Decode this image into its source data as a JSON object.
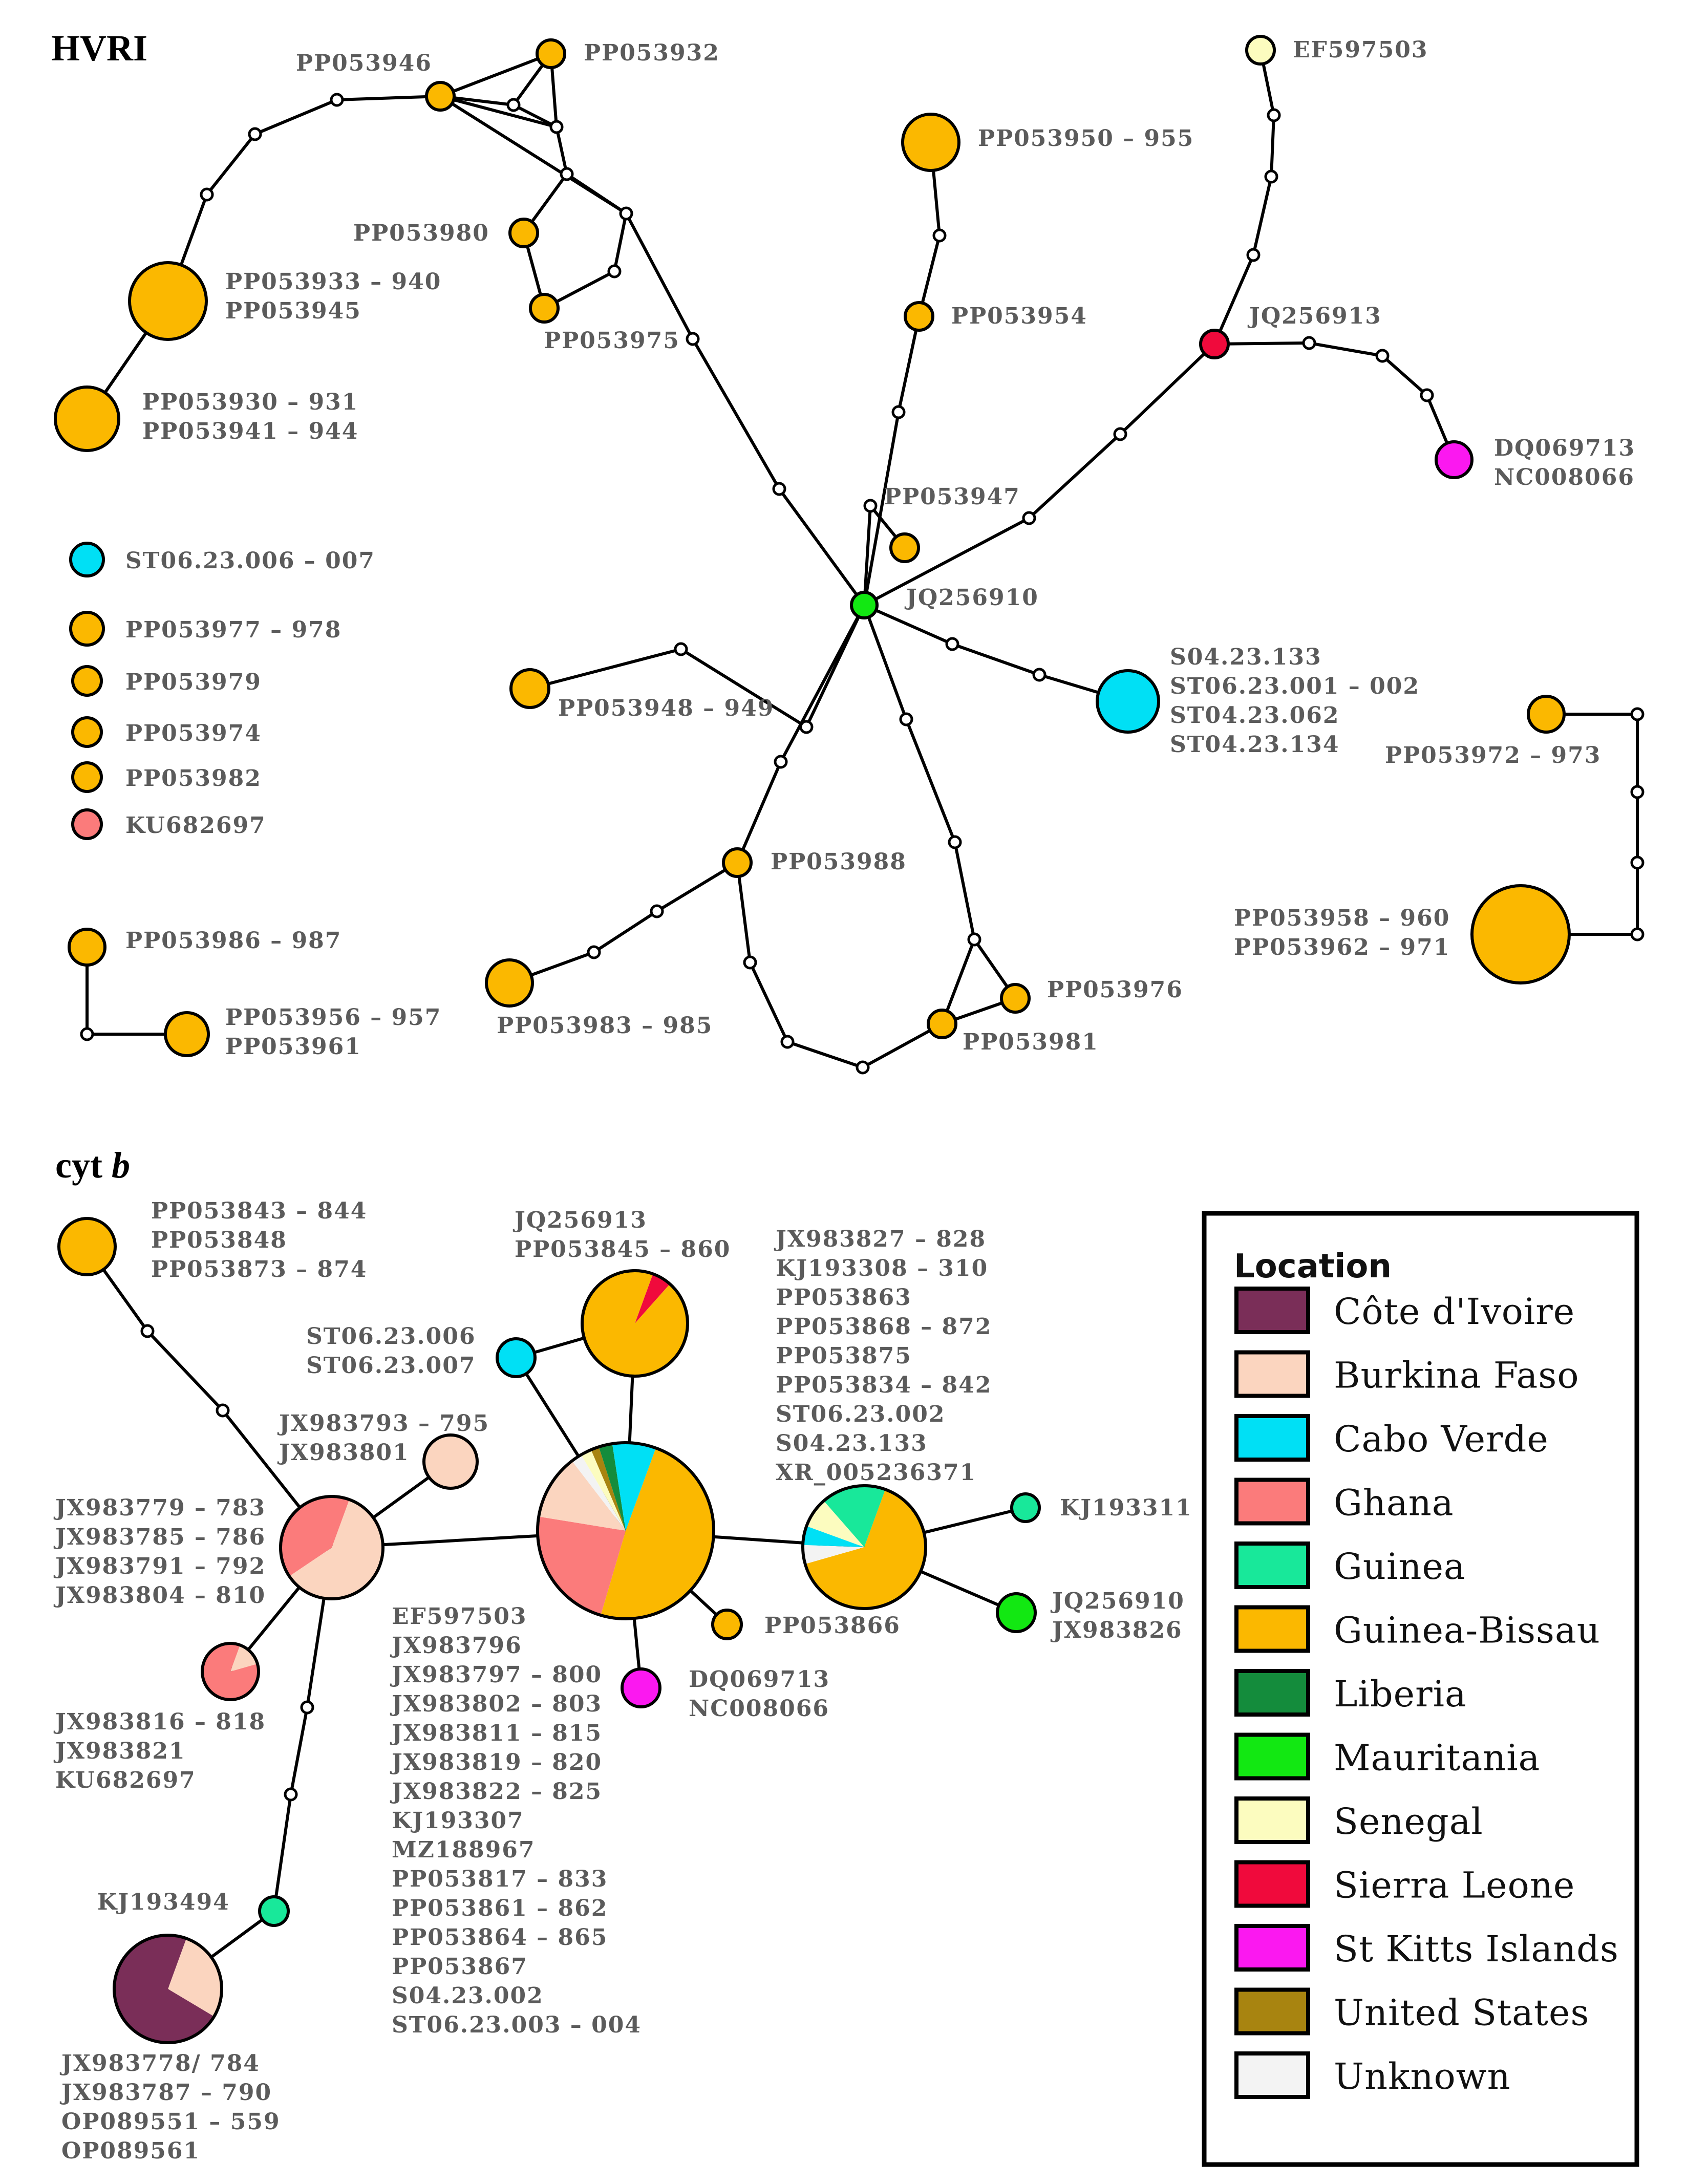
{
  "colors": {
    "cote_divoire": "#7a2e58",
    "burkina_faso": "#fbd5bf",
    "cabo_verde": "#00e0f5",
    "ghana": "#fb7b7b",
    "guinea": "#18e89a",
    "guinea_bissau": "#fbb800",
    "liberia": "#148c3c",
    "mauritania": "#12e812",
    "senegal": "#fcfcbf",
    "sierra_leone": "#f00a3c",
    "st_kitts": "#fb18f0",
    "united_states": "#a88410",
    "unknown": "#f3f3f3",
    "median": "#ffffff"
  },
  "hvri": {
    "title": "HVRI",
    "labels": {
      "PP053946": [
        "PP053946"
      ],
      "PP053932": [
        "PP053932"
      ],
      "EF597503": [
        "EF597503"
      ],
      "PP053950": [
        "PP053950 – 955"
      ],
      "PP053980": [
        "PP053980"
      ],
      "PP053933": [
        "PP053933 – 940",
        "PP053945"
      ],
      "PP053975": [
        "PP053975"
      ],
      "PP053954": [
        "PP053954"
      ],
      "JQ256913": [
        "JQ256913"
      ],
      "PP053930": [
        "PP053930 – 931",
        "PP053941 – 944"
      ],
      "DQ069713": [
        "DQ069713",
        "NC008066"
      ],
      "PP053947": [
        "PP053947"
      ],
      "JQ256910": [
        "JQ256910"
      ],
      "PP053948": [
        "PP053948 – 949"
      ],
      "S04": [
        "S04.23.133",
        "ST06.23.001 – 002",
        "ST04.23.062",
        "ST04.23.134"
      ],
      "PP053972": [
        "PP053972 – 973"
      ],
      "PP053988": [
        "PP053988"
      ],
      "PP053958": [
        "PP053958 – 960",
        "PP053962 – 971"
      ],
      "PP053976": [
        "PP053976"
      ],
      "PP053981": [
        "PP053981"
      ],
      "PP053983": [
        "PP053983 – 985"
      ],
      "PP053986": [
        "PP053986 – 987"
      ],
      "PP053956": [
        "PP053956 – 957",
        "PP053961"
      ]
    },
    "singletons": [
      {
        "label": "ST06.23.006 – 007",
        "color": "cabo_verde"
      },
      {
        "label": "PP053977 – 978",
        "color": "guinea_bissau"
      },
      {
        "label": "PP053979",
        "color": "guinea_bissau"
      },
      {
        "label": "PP053974",
        "color": "guinea_bissau"
      },
      {
        "label": "PP053982",
        "color": "guinea_bissau"
      },
      {
        "label": "KU682697",
        "color": "ghana"
      }
    ]
  },
  "cytb": {
    "title_main": "cyt",
    "title_ital": "b",
    "labels": {
      "PP053843": [
        "PP053843 – 844",
        "PP053848",
        "PP053873 – 874"
      ],
      "JQ256913": [
        "JQ256913",
        "PP053845 – 860"
      ],
      "ST0623006": [
        "ST06.23.006",
        "ST06.23.007"
      ],
      "JX983827": [
        "JX983827 – 828",
        "KJ193308 – 310",
        "PP053863",
        "PP053868 – 872",
        "PP053875",
        "PP053834 – 842",
        "ST06.23.002",
        "S04.23.133",
        "XR_005236371"
      ],
      "JX983793": [
        "JX983793 – 795",
        "JX983801"
      ],
      "JX983779": [
        "JX983779 – 783",
        "JX983785 – 786",
        "JX983791 – 792",
        "JX983804 – 810"
      ],
      "KJ193311": [
        "KJ193311"
      ],
      "EF597503": [
        "EF597503",
        "JX983796",
        "JX983797 – 800",
        "JX983802 – 803",
        "JX983811 – 815",
        "JX983819 – 820",
        "JX983822 – 825",
        "KJ193307",
        "MZ188967",
        "PP053817 – 833",
        "PP053861 – 862",
        "PP053864 – 865",
        "PP053867",
        "S04.23.002",
        "ST06.23.003 – 004"
      ],
      "PP053866": [
        "PP053866"
      ],
      "JQ256910": [
        "JQ256910",
        "JX983826"
      ],
      "DQ069713": [
        "DQ069713",
        "NC008066"
      ],
      "JX983816": [
        "JX983816 – 818",
        "JX983821",
        "KU682697"
      ],
      "KJ193494": [
        "KJ193494"
      ],
      "JX983778": [
        "JX983778/ 784",
        "JX983787 – 790",
        "OP089551 – 559",
        "OP089561"
      ]
    }
  },
  "legend": {
    "title": "Location",
    "items": [
      {
        "label": "Côte d'Ivoire",
        "color": "cote_divoire"
      },
      {
        "label": "Burkina Faso",
        "color": "burkina_faso"
      },
      {
        "label": "Cabo Verde",
        "color": "cabo_verde"
      },
      {
        "label": "Ghana",
        "color": "ghana"
      },
      {
        "label": "Guinea",
        "color": "guinea"
      },
      {
        "label": "Guinea-Bissau",
        "color": "guinea_bissau"
      },
      {
        "label": "Liberia",
        "color": "liberia"
      },
      {
        "label": "Mauritania",
        "color": "mauritania"
      },
      {
        "label": "Senegal",
        "color": "senegal"
      },
      {
        "label": "Sierra Leone",
        "color": "sierra_leone"
      },
      {
        "label": "St Kitts Islands",
        "color": "st_kitts"
      },
      {
        "label": "United States",
        "color": "united_states"
      },
      {
        "label": "Unknown",
        "color": "unknown"
      }
    ]
  },
  "pies": {
    "c_big": [
      {
        "color": "guinea_bissau",
        "frac": 0.49
      },
      {
        "color": "ghana",
        "frac": 0.23
      },
      {
        "color": "burkina_faso",
        "frac": 0.12
      },
      {
        "color": "unknown",
        "frac": 0.02
      },
      {
        "color": "senegal",
        "frac": 0.02
      },
      {
        "color": "united_states",
        "frac": 0.015
      },
      {
        "color": "liberia",
        "frac": 0.025
      },
      {
        "color": "cabo_verde",
        "frac": 0.08
      }
    ],
    "c_bf": [
      {
        "color": "burkina_faso",
        "frac": 0.6
      },
      {
        "color": "ghana",
        "frac": 0.4
      }
    ],
    "c_gb2": [
      {
        "color": "guinea_bissau",
        "frac": 0.65
      },
      {
        "color": "unknown",
        "frac": 0.05
      },
      {
        "color": "cabo_verde",
        "frac": 0.05
      },
      {
        "color": "senegal",
        "frac": 0.08
      },
      {
        "color": "guinea",
        "frac": 0.17
      }
    ],
    "c_ci": [
      {
        "color": "burkina_faso",
        "frac": 0.28
      },
      {
        "color": "cote_divoire",
        "frac": 0.72
      }
    ],
    "c_gh2": [
      {
        "color": "burkina_faso",
        "frac": 0.15
      },
      {
        "color": "ghana",
        "frac": 0.85
      }
    ],
    "c_jq13": [
      {
        "color": "sierra_leone",
        "frac": 0.06
      },
      {
        "color": "guinea_bissau",
        "frac": 0.94
      }
    ]
  }
}
